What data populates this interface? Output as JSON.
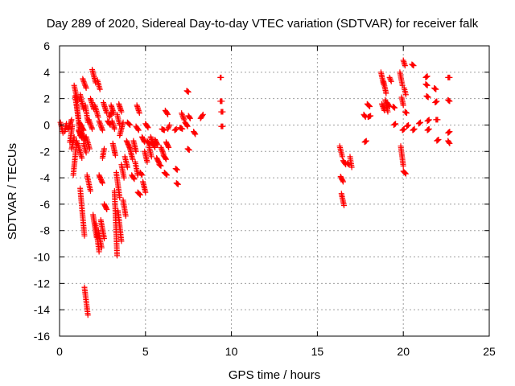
{
  "chart_data": {
    "type": "scatter",
    "title": "Day 289 of 2020, Sidereal Day-to-day VTEC variation (SDTVAR) for receiver falk",
    "xlabel": "GPS time / hours",
    "ylabel": "SDTVAR / TECUs",
    "xlim": [
      0,
      25
    ],
    "ylim": [
      -16,
      6
    ],
    "xticks": [
      0,
      5,
      10,
      15,
      20,
      25
    ],
    "yticks": [
      -16,
      -14,
      -12,
      -10,
      -8,
      -6,
      -4,
      -2,
      0,
      2,
      4,
      6
    ],
    "grid": true,
    "marker": "+",
    "color": "#ff0000",
    "segments": [
      [
        0.05,
        0.2,
        0.2,
        -0.6
      ],
      [
        0.3,
        0.4,
        -0.5,
        0.1
      ],
      [
        0.5,
        0.7,
        -0.3,
        0.4
      ],
      [
        0.6,
        0.75,
        -1.3,
        0.0
      ],
      [
        0.7,
        0.85,
        -1.8,
        -0.9
      ],
      [
        0.8,
        1.0,
        -3.8,
        -1.2
      ],
      [
        0.85,
        1.05,
        3.0,
        1.8
      ],
      [
        0.9,
        1.1,
        2.2,
        0.5
      ],
      [
        1.0,
        1.2,
        1.5,
        -0.8
      ],
      [
        1.05,
        1.3,
        -1.4,
        -2.5
      ],
      [
        1.1,
        1.3,
        -0.4,
        -1.0
      ],
      [
        1.15,
        1.4,
        0.2,
        -0.4
      ],
      [
        1.2,
        1.4,
        2.3,
        1.2
      ],
      [
        1.2,
        1.45,
        -4.8,
        -8.4
      ],
      [
        1.3,
        1.5,
        -0.6,
        -1.2
      ],
      [
        1.35,
        1.55,
        3.5,
        2.8
      ],
      [
        1.4,
        1.55,
        -1.4,
        -2.1
      ],
      [
        1.45,
        1.65,
        -12.3,
        -14.4
      ],
      [
        1.5,
        1.65,
        1.5,
        0.2
      ],
      [
        1.55,
        1.75,
        -0.9,
        -1.8
      ],
      [
        1.6,
        1.8,
        -3.8,
        -5.0
      ],
      [
        1.7,
        1.9,
        0.4,
        -0.3
      ],
      [
        1.8,
        2.0,
        2.0,
        1.2
      ],
      [
        1.9,
        2.1,
        4.2,
        3.2
      ],
      [
        1.95,
        2.15,
        -6.8,
        -8.5
      ],
      [
        2.05,
        2.25,
        1.5,
        0.6
      ],
      [
        2.1,
        2.3,
        -7.5,
        -9.6
      ],
      [
        2.2,
        2.35,
        3.4,
        2.7
      ],
      [
        2.25,
        2.45,
        -8.0,
        -9.3
      ],
      [
        2.3,
        2.5,
        -3.8,
        -4.4
      ],
      [
        2.3,
        2.5,
        0.3,
        -0.4
      ],
      [
        2.4,
        2.6,
        -7.2,
        -8.6
      ],
      [
        2.5,
        2.6,
        -2.5,
        -1.8
      ],
      [
        2.55,
        2.75,
        1.7,
        0.9
      ],
      [
        2.6,
        2.75,
        -6.0,
        -6.4
      ],
      [
        2.8,
        2.95,
        0.3,
        0.0
      ],
      [
        2.9,
        3.05,
        0.6,
        1.0
      ],
      [
        3.0,
        3.15,
        1.5,
        0.9
      ],
      [
        3.05,
        3.2,
        0.3,
        -0.3
      ],
      [
        3.1,
        3.25,
        -1.4,
        -2.3
      ],
      [
        3.2,
        3.35,
        -5.0,
        -9.9
      ],
      [
        3.3,
        3.5,
        -3.6,
        -5.5
      ],
      [
        3.35,
        3.5,
        0.8,
        0.0
      ],
      [
        3.4,
        3.6,
        -6.5,
        -8.8
      ],
      [
        3.45,
        3.6,
        1.6,
        1.0
      ],
      [
        3.5,
        3.7,
        -0.8,
        0.2
      ],
      [
        3.6,
        3.75,
        -3.0,
        -4.0
      ],
      [
        3.7,
        3.85,
        -5.7,
        -6.9
      ],
      [
        3.8,
        3.95,
        -2.4,
        -3.2
      ],
      [
        3.9,
        4.1,
        -1.2,
        -1.8
      ],
      [
        3.95,
        4.1,
        0.2,
        0.0
      ],
      [
        4.1,
        4.25,
        -1.8,
        -2.6
      ],
      [
        4.2,
        4.35,
        -3.8,
        -4.1
      ],
      [
        4.3,
        4.45,
        -1.2,
        -2.0
      ],
      [
        4.4,
        4.55,
        -2.8,
        -3.8
      ],
      [
        4.45,
        4.6,
        -0.1,
        -0.4
      ],
      [
        4.5,
        4.65,
        1.5,
        0.9
      ],
      [
        4.55,
        4.7,
        -5.1,
        -5.3
      ],
      [
        4.7,
        4.8,
        -3.6,
        -3.8
      ],
      [
        4.8,
        4.95,
        -0.9,
        -1.3
      ],
      [
        4.85,
        5.0,
        -4.3,
        -5.1
      ],
      [
        4.95,
        5.1,
        -2.0,
        -2.8
      ],
      [
        5.0,
        5.15,
        0.1,
        -0.2
      ],
      [
        5.1,
        5.25,
        -1.2,
        -1.5
      ],
      [
        5.2,
        5.35,
        -1.6,
        -2.4
      ],
      [
        5.3,
        5.45,
        -0.9,
        -1.4
      ],
      [
        5.4,
        5.55,
        -1.3,
        -1.7
      ],
      [
        5.55,
        5.7,
        -1.1,
        -1.5
      ],
      [
        5.65,
        5.8,
        -2.5,
        -2.9
      ],
      [
        5.8,
        5.9,
        -3.0,
        -3.1
      ],
      [
        5.9,
        6.05,
        -1.7,
        -2.2
      ],
      [
        5.95,
        6.1,
        -0.3,
        -0.4
      ],
      [
        6.05,
        6.2,
        -2.3,
        -2.6
      ],
      [
        6.1,
        6.25,
        -3.6,
        -3.8
      ],
      [
        6.15,
        6.3,
        1.1,
        0.8
      ],
      [
        6.2,
        6.35,
        -1.3,
        -1.7
      ],
      [
        6.3,
        6.4,
        -0.3,
        0.0
      ],
      [
        6.7,
        6.8,
        -0.4,
        -0.3
      ],
      [
        6.75,
        6.85,
        -3.3,
        -3.4
      ],
      [
        6.8,
        6.9,
        -4.4,
        -4.5
      ],
      [
        7.0,
        7.15,
        -0.2,
        -0.3
      ],
      [
        7.1,
        7.25,
        0.9,
        0.4
      ],
      [
        7.3,
        7.45,
        0.2,
        -0.1
      ],
      [
        7.4,
        7.5,
        2.6,
        2.5
      ],
      [
        7.45,
        7.55,
        -1.8,
        -1.9
      ],
      [
        7.5,
        7.6,
        0.7,
        0.5
      ],
      [
        7.8,
        7.9,
        -0.5,
        -0.7
      ],
      [
        8.2,
        8.35,
        0.5,
        0.8
      ],
      [
        9.35,
        9.4,
        3.6,
        3.6
      ],
      [
        9.35,
        9.45,
        1.8,
        1.8
      ],
      [
        9.4,
        9.5,
        1.0,
        1.0
      ],
      [
        9.4,
        9.5,
        -0.1,
        -0.1
      ],
      [
        16.3,
        16.45,
        -1.6,
        -2.4
      ],
      [
        16.35,
        16.5,
        -3.9,
        -4.3
      ],
      [
        16.4,
        16.55,
        -5.2,
        -6.1
      ],
      [
        16.5,
        16.65,
        -2.7,
        -3.0
      ],
      [
        16.75,
        16.85,
        -2.9,
        -3.0
      ],
      [
        16.9,
        17.0,
        -2.4,
        -3.2
      ],
      [
        17.7,
        17.8,
        0.8,
        0.6
      ],
      [
        17.75,
        17.85,
        -1.3,
        -1.2
      ],
      [
        17.9,
        18.05,
        1.6,
        1.4
      ],
      [
        17.95,
        18.1,
        0.6,
        0.7
      ],
      [
        18.7,
        18.85,
        4.0,
        3.1
      ],
      [
        18.75,
        18.9,
        1.6,
        1.1
      ],
      [
        18.85,
        19.0,
        3.3,
        2.4
      ],
      [
        18.95,
        19.1,
        1.9,
        1.0
      ],
      [
        19.05,
        19.2,
        1.7,
        1.4
      ],
      [
        19.2,
        19.3,
        3.6,
        3.3
      ],
      [
        19.4,
        19.5,
        1.4,
        1.3
      ],
      [
        19.45,
        19.55,
        0.0,
        0.1
      ],
      [
        19.8,
        19.95,
        4.0,
        3.0
      ],
      [
        19.85,
        20.0,
        -1.6,
        -3.1
      ],
      [
        19.9,
        20.0,
        2.1,
        1.5
      ],
      [
        19.95,
        20.05,
        -0.4,
        -0.3
      ],
      [
        20.0,
        20.1,
        4.9,
        4.5
      ],
      [
        20.0,
        20.15,
        -3.5,
        -3.7
      ],
      [
        20.05,
        20.15,
        2.8,
        2.3
      ],
      [
        20.1,
        20.2,
        1.0,
        0.9
      ],
      [
        20.2,
        20.3,
        -0.1,
        0.0
      ],
      [
        20.5,
        20.6,
        4.6,
        4.5
      ],
      [
        20.55,
        20.65,
        -0.4,
        -0.3
      ],
      [
        20.9,
        21.0,
        0.1,
        0.2
      ],
      [
        21.3,
        21.4,
        3.6,
        3.7
      ],
      [
        21.3,
        21.4,
        3.1,
        3.0
      ],
      [
        21.35,
        21.45,
        2.2,
        2.1
      ],
      [
        21.4,
        21.5,
        0.3,
        0.4
      ],
      [
        21.4,
        21.5,
        -0.4,
        -0.3
      ],
      [
        21.8,
        21.9,
        2.8,
        2.7
      ],
      [
        21.85,
        21.95,
        1.7,
        1.8
      ],
      [
        21.9,
        22.0,
        0.4,
        0.4
      ],
      [
        21.95,
        22.05,
        -1.2,
        -1.1
      ],
      [
        22.6,
        22.7,
        3.6,
        3.6
      ],
      [
        22.6,
        22.7,
        1.9,
        1.8
      ],
      [
        22.6,
        22.7,
        -0.6,
        -0.5
      ],
      [
        22.6,
        22.7,
        -1.2,
        -1.4
      ]
    ]
  }
}
